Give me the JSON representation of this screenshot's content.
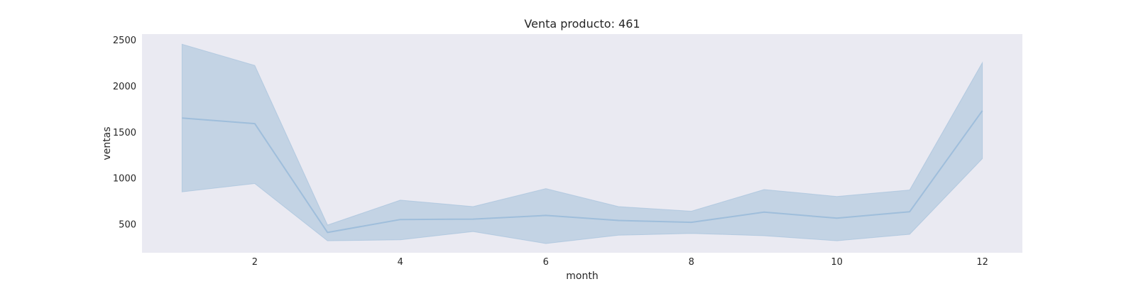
{
  "chart_data": {
    "type": "line",
    "title": "Venta producto: 461",
    "xlabel": "month",
    "ylabel": "ventas",
    "x": [
      1,
      2,
      3,
      4,
      5,
      6,
      7,
      8,
      9,
      10,
      11,
      12
    ],
    "series": [
      {
        "values": [
          1650,
          1590,
          410,
          550,
          555,
          595,
          540,
          520,
          630,
          565,
          635,
          1730
        ],
        "ci_upper": [
          2450,
          2220,
          490,
          760,
          690,
          885,
          690,
          640,
          875,
          800,
          870,
          2250
        ],
        "ci_lower": [
          850,
          940,
          320,
          330,
          420,
          290,
          380,
          400,
          375,
          320,
          390,
          1210
        ]
      }
    ],
    "xlim": [
      0.45,
      12.55
    ],
    "ylim": [
      190,
      2560
    ],
    "xticks": [
      2,
      4,
      6,
      8,
      10,
      12
    ],
    "yticks": [
      500,
      1000,
      1500,
      2000,
      2500
    ],
    "grid": false,
    "colors": {
      "plot_background": "#eaeaf2",
      "line": "#9fbedb",
      "band": "#c3d3e4"
    }
  }
}
